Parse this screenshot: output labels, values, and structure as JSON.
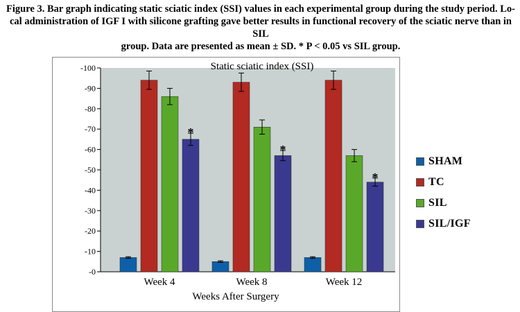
{
  "caption": {
    "line1": "Figure 3. Bar graph indicating static sciatic index (SSI) values in each experimental group during the study period. Lo-",
    "line2": "cal administration of IGF I with silicone grafting gave better results in functional recovery of the sciatic nerve than in SIL",
    "line3": "group. Data are presented as mean ± SD. * P < 0.05 vs SIL group."
  },
  "chart_data": {
    "type": "bar",
    "title": "Static sciatic index (SSI)",
    "xlabel": "Weeks After Surgery",
    "ylabel": "",
    "categories": [
      "Week 4",
      "Week 8",
      "Week 12"
    ],
    "y_ticks": [
      "-100",
      "-90",
      "-80",
      "-70",
      "-60",
      "-50",
      "-40",
      "-30",
      "-20",
      "-10",
      "-0"
    ],
    "ylim": [
      0,
      -100
    ],
    "series": [
      {
        "name": "SHAM",
        "color": "#0e5fa8",
        "values": [
          -7,
          -5,
          -7
        ],
        "errors": [
          0.4,
          0.4,
          0.4
        ],
        "significance": [
          "",
          "",
          ""
        ]
      },
      {
        "name": "TC",
        "color": "#b22a22",
        "values": [
          -94,
          -93,
          -94
        ],
        "errors": [
          4.5,
          4.5,
          4.5
        ],
        "significance": [
          "",
          "",
          ""
        ]
      },
      {
        "name": "SIL",
        "color": "#5aa82a",
        "values": [
          -86,
          -71,
          -57
        ],
        "errors": [
          4,
          3.5,
          3
        ],
        "significance": [
          "",
          "",
          ""
        ]
      },
      {
        "name": "SIL/IGF",
        "color": "#3a3990",
        "values": [
          -65,
          -57,
          -44
        ],
        "errors": [
          3,
          2.5,
          2
        ],
        "significance": [
          "*",
          "*",
          "*"
        ]
      }
    ],
    "grid": false,
    "legend_position": "right"
  }
}
